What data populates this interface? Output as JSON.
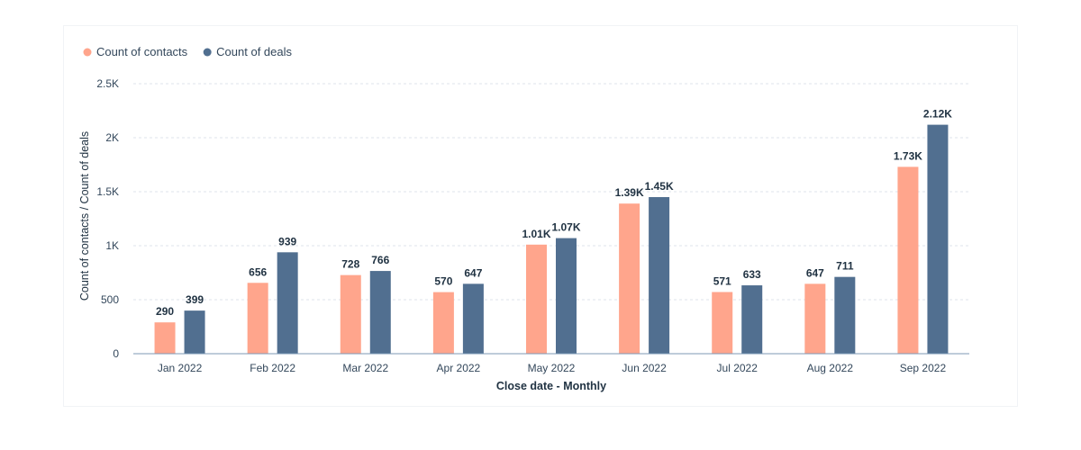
{
  "chart_data": {
    "type": "bar",
    "categories": [
      "Jan 2022",
      "Feb 2022",
      "Mar 2022",
      "Apr 2022",
      "May 2022",
      "Jun 2022",
      "Jul 2022",
      "Aug 2022",
      "Sep 2022"
    ],
    "series": [
      {
        "name": "Count of contacts",
        "color": "#ffa58c",
        "values": [
          290,
          656,
          728,
          570,
          1010,
          1390,
          571,
          647,
          1730
        ],
        "labels": [
          "290",
          "656",
          "728",
          "570",
          "1.01K",
          "1.39K",
          "571",
          "647",
          "1.73K"
        ]
      },
      {
        "name": "Count of deals",
        "color": "#516f90",
        "values": [
          399,
          939,
          766,
          647,
          1070,
          1450,
          633,
          711,
          2120
        ],
        "labels": [
          "399",
          "939",
          "766",
          "647",
          "1.07K",
          "1.45K",
          "633",
          "711",
          "2.12K"
        ]
      }
    ],
    "yticks": [
      {
        "value": 0,
        "label": "0"
      },
      {
        "value": 500,
        "label": "500"
      },
      {
        "value": 1000,
        "label": "1K"
      },
      {
        "value": 1500,
        "label": "1.5K"
      },
      {
        "value": 2000,
        "label": "2K"
      },
      {
        "value": 2500,
        "label": "2.5K"
      }
    ],
    "ylim": [
      0,
      2500
    ],
    "xlabel": "Close date - Monthly",
    "ylabel": "Count of contacts / Count of deals",
    "grid": true,
    "legend_position": "top-left"
  }
}
